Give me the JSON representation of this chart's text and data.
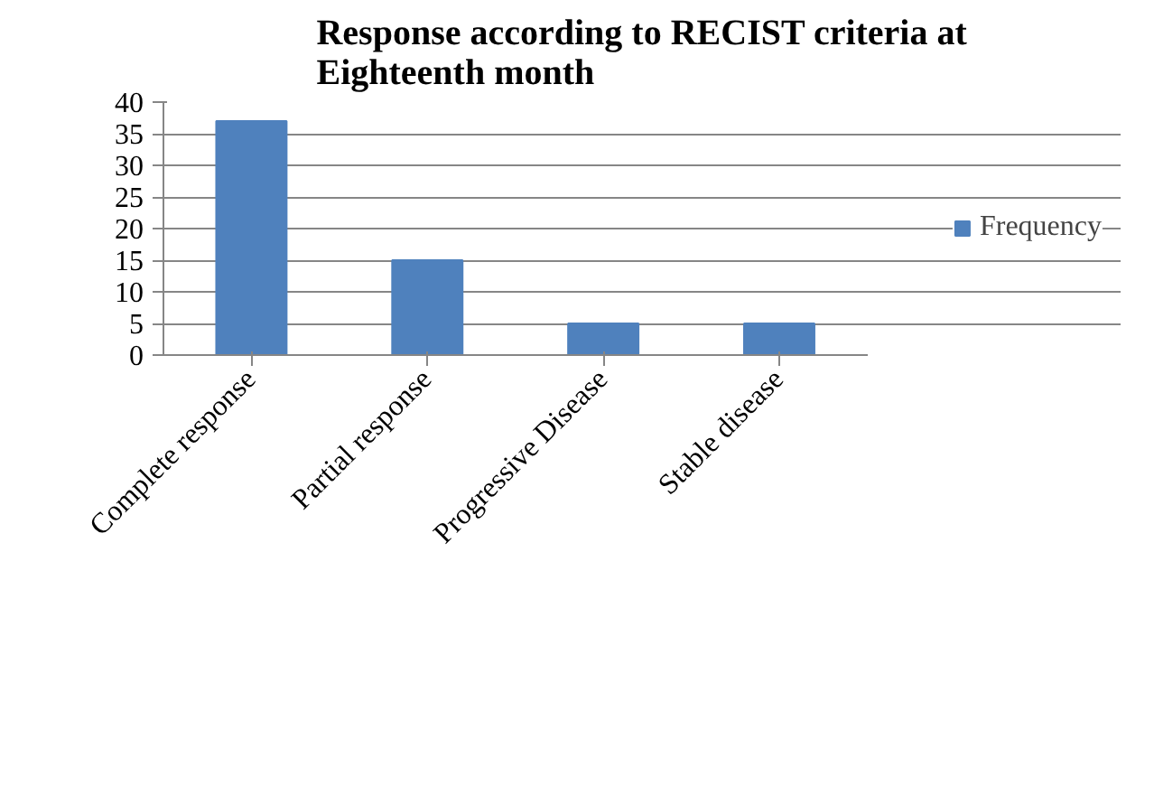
{
  "chart_data": {
    "type": "bar",
    "title": "Response according to RECIST criteria at Eighteenth month",
    "categories": [
      "Complete response",
      "Partial response",
      "Progressive Disease",
      "Stable disease"
    ],
    "series": [
      {
        "name": "Frequency",
        "color": "#4f81bd",
        "values": [
          37,
          15,
          5,
          5
        ]
      }
    ],
    "ylim": [
      0,
      40
    ],
    "yticks": [
      0,
      5,
      10,
      15,
      20,
      25,
      30,
      35,
      40
    ],
    "grid": "y",
    "legend": "right"
  }
}
